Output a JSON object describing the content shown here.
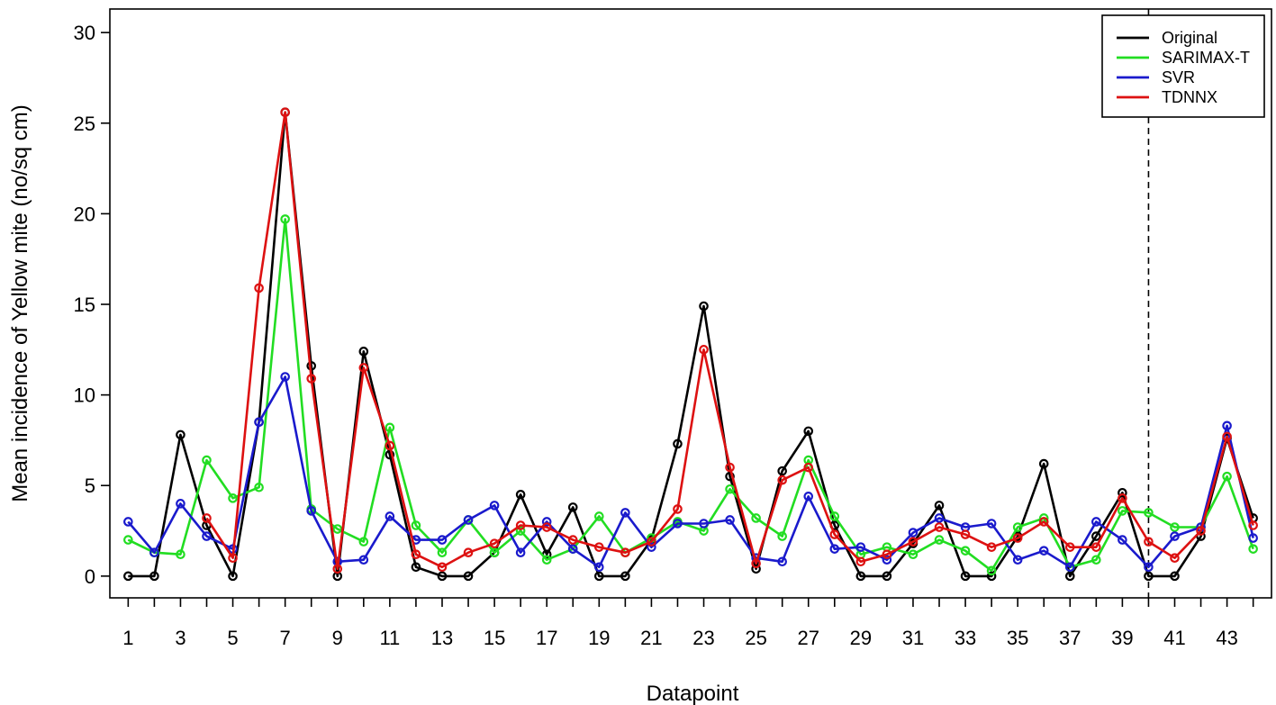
{
  "chart_data": {
    "type": "line",
    "title": "",
    "xlabel": "Datapoint",
    "ylabel": "Mean incidence of Yellow mite (no/sq cm)",
    "xlim": [
      0.3,
      44.7
    ],
    "ylim": [
      -1.2,
      31.3
    ],
    "yticks": [
      0,
      5,
      10,
      15,
      20,
      25,
      30
    ],
    "xticks": [
      1,
      3,
      5,
      7,
      9,
      11,
      13,
      15,
      17,
      19,
      21,
      23,
      25,
      27,
      29,
      31,
      33,
      35,
      37,
      39,
      41,
      43
    ],
    "xtick_marks_every": 1,
    "grid": false,
    "legend_position": "top-right",
    "vline_x": 40,
    "x": [
      1,
      2,
      3,
      4,
      5,
      6,
      7,
      8,
      9,
      10,
      11,
      12,
      13,
      14,
      15,
      16,
      17,
      18,
      19,
      20,
      21,
      22,
      23,
      24,
      25,
      26,
      27,
      28,
      29,
      30,
      31,
      32,
      33,
      34,
      35,
      36,
      37,
      38,
      39,
      40,
      41,
      42,
      43,
      44
    ],
    "series": [
      {
        "name": "Original",
        "color": "#000000",
        "values": [
          0,
          0,
          7.8,
          2.8,
          0,
          8.5,
          25.6,
          11.6,
          0,
          12.4,
          6.7,
          0.5,
          0,
          0,
          1.3,
          4.5,
          1.2,
          3.8,
          0,
          0,
          2.0,
          7.3,
          14.9,
          5.5,
          0.4,
          5.8,
          8.0,
          2.8,
          0,
          0,
          1.8,
          3.9,
          0,
          0,
          2.2,
          6.2,
          0,
          2.2,
          4.6,
          0,
          0,
          2.2,
          7.6,
          3.2
        ]
      },
      {
        "name": "SARIMAX-T",
        "color": "#22dd22",
        "values": [
          2.0,
          1.3,
          1.2,
          6.4,
          4.3,
          4.9,
          19.7,
          3.7,
          2.6,
          1.9,
          8.2,
          2.8,
          1.3,
          3.1,
          1.3,
          2.5,
          0.9,
          1.5,
          3.3,
          1.3,
          2.1,
          3.0,
          2.5,
          4.8,
          3.2,
          2.2,
          6.4,
          3.3,
          1.2,
          1.6,
          1.2,
          2.0,
          1.4,
          0.3,
          2.7,
          3.2,
          0.5,
          0.9,
          3.6,
          3.5,
          2.7,
          2.7,
          5.5,
          1.5
        ]
      },
      {
        "name": "SVR",
        "color": "#1a1acc",
        "values": [
          3.0,
          1.3,
          4.0,
          2.2,
          1.5,
          8.5,
          11.0,
          3.6,
          0.8,
          0.9,
          3.3,
          2.0,
          2.0,
          3.1,
          3.9,
          1.3,
          3.0,
          1.5,
          0.5,
          3.5,
          1.6,
          2.9,
          2.9,
          3.1,
          1.0,
          0.8,
          4.4,
          1.5,
          1.6,
          0.9,
          2.4,
          3.2,
          2.7,
          2.9,
          0.9,
          1.4,
          0.5,
          3.0,
          2.0,
          0.5,
          2.2,
          2.7,
          8.3,
          2.1
        ]
      },
      {
        "name": "TDNNX",
        "color": "#dd1111",
        "values": [
          null,
          null,
          null,
          3.2,
          1.0,
          15.9,
          25.6,
          10.9,
          0.4,
          11.5,
          7.2,
          1.2,
          0.5,
          1.3,
          1.8,
          2.8,
          2.7,
          2.0,
          1.6,
          1.3,
          1.9,
          3.7,
          12.5,
          6.0,
          0.7,
          5.3,
          6.0,
          2.3,
          0.8,
          1.2,
          1.9,
          2.7,
          2.3,
          1.6,
          2.1,
          3.0,
          1.6,
          1.6,
          4.3,
          1.9,
          1.0,
          2.5,
          7.7,
          2.8
        ]
      }
    ]
  }
}
